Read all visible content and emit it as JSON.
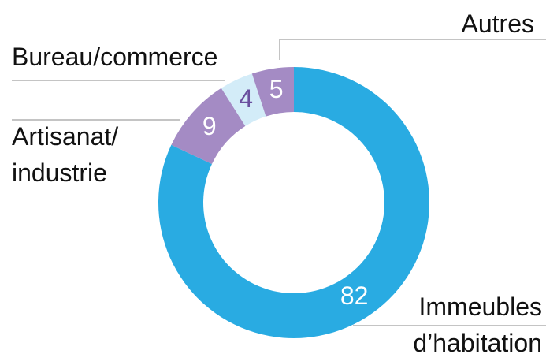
{
  "chart_data": {
    "type": "donut",
    "categories": [
      [
        "Immeubles",
        "d’habitation"
      ],
      [
        "Artisanat/",
        "industrie"
      ],
      [
        "Bureau/commerce"
      ],
      [
        "Autres"
      ]
    ],
    "values": [
      82,
      9,
      4,
      5
    ],
    "colors": [
      "#29abe2",
      "#a48bc4",
      "#d3ecf8",
      "#a48bc4"
    ],
    "value_label_colors": [
      "#ffffff",
      "#ffffff",
      "#6a4f9e",
      "#ffffff"
    ]
  }
}
